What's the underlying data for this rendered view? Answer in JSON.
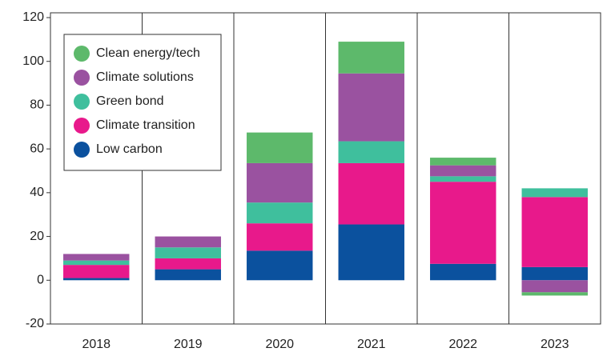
{
  "chart_data": {
    "type": "stacked_bar",
    "categories": [
      "2018",
      "2019",
      "2020",
      "2021",
      "2022",
      "2023"
    ],
    "series": [
      {
        "name": "Low carbon",
        "color": "#0b519e",
        "values": [
          1,
          5,
          13.5,
          25.5,
          7.5,
          6
        ]
      },
      {
        "name": "Climate transition",
        "color": "#e8198b",
        "values": [
          6,
          5,
          12.5,
          28,
          37.5,
          32
        ]
      },
      {
        "name": "Green bond",
        "color": "#3fbf9d",
        "values": [
          2,
          5,
          9.5,
          10,
          2.5,
          4
        ]
      },
      {
        "name": "Climate solutions",
        "color": "#9a52a0",
        "values": [
          3,
          5,
          18,
          31,
          5,
          -5.5
        ]
      },
      {
        "name": "Clean energy/tech",
        "color": "#5db96b",
        "values": [
          0,
          0,
          14,
          14.5,
          3.5,
          -1.5
        ]
      }
    ],
    "ylim": [
      -20,
      120
    ],
    "yticks": [
      -20,
      0,
      20,
      40,
      60,
      80,
      100,
      120
    ],
    "legend": "upper left"
  }
}
